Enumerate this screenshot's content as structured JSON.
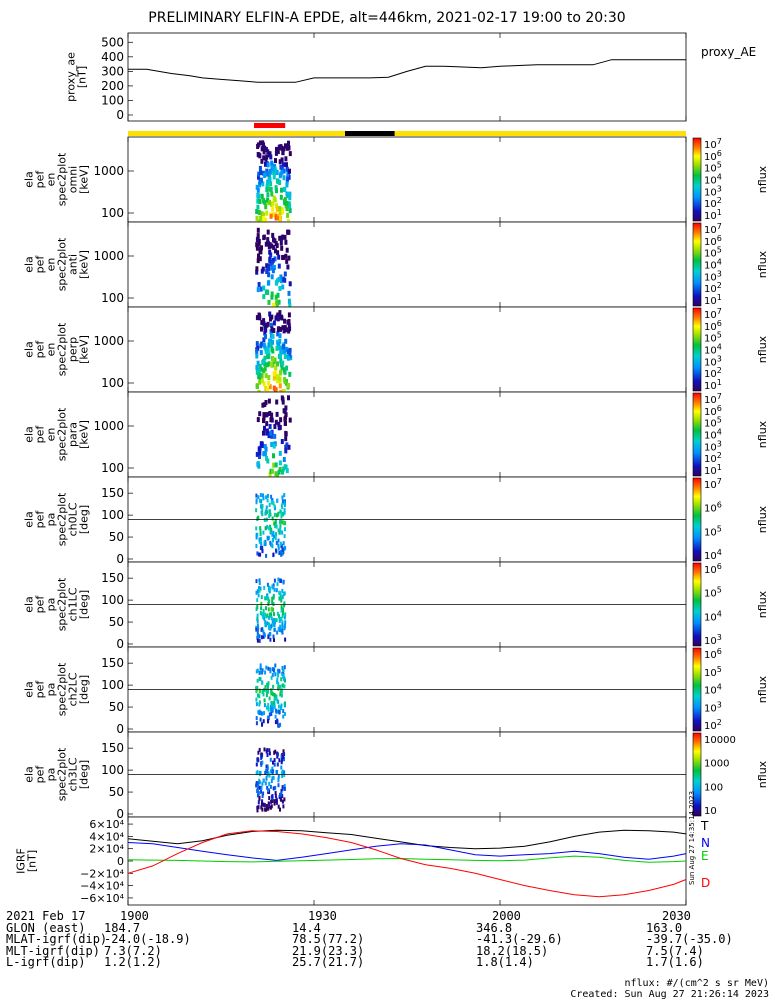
{
  "title": "PRELIMINARY ELFIN-A EPDE, alt=446km, 2021-02-17 19:00 to 20:30",
  "colors": {
    "bar_yellow": "#FFE000",
    "bar_black": "#000000",
    "bar_red": "#FF0000",
    "igrf_T": "#000000",
    "igrf_N": "#0000FF",
    "igrf_E": "#00CC00",
    "igrf_D": "#FF0000"
  },
  "chart_data": [
    {
      "type": "line",
      "id": "proxy_ae",
      "ylabel": "proxy_ae\n[nT]",
      "legend": "proxy_AE",
      "ylim": [
        0,
        550
      ],
      "yticks": [
        "500",
        "400",
        "300",
        "200",
        "100",
        "0"
      ],
      "ytick_values": [
        500,
        400,
        300,
        200,
        100,
        0
      ],
      "x": [
        0,
        3,
        5,
        7,
        10,
        12,
        15,
        18,
        21,
        24,
        27,
        30,
        33,
        36,
        39,
        42,
        45,
        48,
        51,
        54,
        57,
        60,
        63,
        66,
        69,
        72,
        75,
        78,
        81,
        84,
        87,
        90
      ],
      "values": [
        315,
        315,
        300,
        285,
        270,
        255,
        245,
        235,
        225,
        225,
        225,
        255,
        255,
        255,
        255,
        260,
        300,
        335,
        335,
        330,
        325,
        335,
        340,
        345,
        345,
        345,
        345,
        380,
        380,
        380,
        380,
        380
      ]
    },
    {
      "type": "heatmap",
      "id": "en_omni",
      "ylabel": "ela\npef\nen\nspec2plot\nomni\n[keV]",
      "yticks": [
        "1000",
        "100"
      ],
      "colorbar_label": "nflux",
      "colorbar_ticks": [
        "10^7",
        "10^6",
        "10^5",
        "10^4",
        "10^3",
        "10^2",
        "10^1"
      ]
    },
    {
      "type": "heatmap",
      "id": "en_anti",
      "ylabel": "ela\npef\nen\nspec2plot\nanti\n[keV]",
      "yticks": [
        "1000",
        "100"
      ],
      "colorbar_label": "nflux",
      "colorbar_ticks": [
        "10^7",
        "10^6",
        "10^5",
        "10^4",
        "10^3",
        "10^2",
        "10^1"
      ]
    },
    {
      "type": "heatmap",
      "id": "en_perp",
      "ylabel": "ela\npef\nen\nspec2plot\nperp\n[keV]",
      "yticks": [
        "1000",
        "100"
      ],
      "colorbar_label": "nflux",
      "colorbar_ticks": [
        "10^7",
        "10^6",
        "10^5",
        "10^4",
        "10^3",
        "10^2",
        "10^1"
      ]
    },
    {
      "type": "heatmap",
      "id": "en_para",
      "ylabel": "ela\npef\nen\nspec2plot\npara\n[keV]",
      "yticks": [
        "1000",
        "100"
      ],
      "colorbar_label": "nflux",
      "colorbar_ticks": [
        "10^7",
        "10^6",
        "10^5",
        "10^4",
        "10^3",
        "10^2",
        "10^1"
      ]
    },
    {
      "type": "heatmap",
      "id": "pa_ch0",
      "ylabel": "ela\npef\npa\nspec2plot\nch0LC\n[deg]",
      "yticks": [
        "150",
        "100",
        "50",
        "0"
      ],
      "colorbar_label": "nflux",
      "colorbar_ticks": [
        "10^7",
        "10^6",
        "10^5",
        "10^4"
      ]
    },
    {
      "type": "heatmap",
      "id": "pa_ch1",
      "ylabel": "ela\npef\npa\nspec2plot\nch1LC\n[deg]",
      "yticks": [
        "150",
        "100",
        "50",
        "0"
      ],
      "colorbar_label": "nflux",
      "colorbar_ticks": [
        "10^6",
        "10^5",
        "10^4",
        "10^3"
      ]
    },
    {
      "type": "heatmap",
      "id": "pa_ch2",
      "ylabel": "ela\npef\npa\nspec2plot\nch2LC\n[deg]",
      "yticks": [
        "150",
        "100",
        "50",
        "0"
      ],
      "colorbar_label": "nflux",
      "colorbar_ticks": [
        "10^6",
        "10^5",
        "10^4",
        "10^3",
        "10^2"
      ]
    },
    {
      "type": "heatmap",
      "id": "pa_ch3",
      "ylabel": "ela\npef\npa\nspec2plot\nch3LC\n[deg]",
      "yticks": [
        "150",
        "100",
        "50",
        "0"
      ],
      "colorbar_label": "nflux",
      "colorbar_ticks": [
        "10000",
        "1000",
        "100",
        "10"
      ]
    },
    {
      "type": "line",
      "id": "igrf",
      "ylabel": "IGRF\n[nT]",
      "ylim": [
        -65000,
        65000
      ],
      "yticks": [
        "6×10⁴",
        "4×10⁴",
        "2×10⁴",
        "0",
        "−2×10⁴",
        "−4×10⁴",
        "−6×10⁴"
      ],
      "ytick_values": [
        60000,
        40000,
        20000,
        0,
        -20000,
        -40000,
        -60000
      ],
      "x": [
        0,
        4,
        8,
        12,
        16,
        20,
        24,
        28,
        32,
        36,
        40,
        44,
        48,
        52,
        56,
        60,
        64,
        68,
        72,
        76,
        80,
        84,
        88,
        90
      ],
      "series": [
        {
          "name": "T",
          "color": "#000000",
          "values": [
            36000,
            32000,
            28000,
            33000,
            42000,
            48000,
            50000,
            49000,
            46000,
            43000,
            37000,
            31000,
            25000,
            22000,
            20000,
            21000,
            24000,
            31000,
            40000,
            47000,
            50000,
            49000,
            47000,
            44000
          ]
        },
        {
          "name": "N",
          "color": "#0000FF",
          "values": [
            30000,
            28000,
            22000,
            16000,
            10000,
            5000,
            1000,
            6000,
            12000,
            18000,
            24000,
            28000,
            26000,
            18000,
            10000,
            8000,
            10000,
            12000,
            16000,
            12000,
            6000,
            3000,
            8000,
            12000
          ]
        },
        {
          "name": "E",
          "color": "#00CC00",
          "values": [
            2000,
            1500,
            1000,
            0,
            -1000,
            -1500,
            -500,
            500,
            1500,
            2500,
            3500,
            4000,
            3000,
            2000,
            1000,
            500,
            1500,
            5000,
            8000,
            6000,
            1000,
            -2000,
            -1000,
            0
          ]
        },
        {
          "name": "D",
          "color": "#FF0000",
          "values": [
            -20000,
            -8000,
            12000,
            30000,
            44000,
            49000,
            48000,
            44000,
            38000,
            30000,
            18000,
            4000,
            -6000,
            -12000,
            -20000,
            -30000,
            -40000,
            -48000,
            -55000,
            -58000,
            -55000,
            -48000,
            -38000,
            -30000
          ]
        }
      ]
    }
  ],
  "bars": {
    "yellow": [
      [
        0,
        90
      ]
    ],
    "black": [
      [
        35,
        43
      ]
    ],
    "red": [
      [
        20,
        26
      ]
    ]
  },
  "xaxis": {
    "ticks": [
      "1900",
      "1930",
      "2000",
      "2030"
    ],
    "tick_minutes": [
      0,
      30,
      60,
      90
    ]
  },
  "footer": {
    "labels": [
      "2021 Feb 17",
      "GLON (east)",
      "MLAT-igrf(dip)",
      "MLT-igrf(dip)",
      "L-igrf(dip)"
    ],
    "rows": [
      [
        "1900",
        "1930",
        "2000",
        "2030"
      ],
      [
        "184.7",
        "14.4",
        "346.8",
        "163.0"
      ],
      [
        "-24.0(-18.9)",
        "78.5(77.2)",
        "-41.3(-29.6)",
        "-39.7(-35.0)"
      ],
      [
        "7.3(7.2)",
        "21.9(23.3)",
        "18.2(18.5)",
        "7.5(7.4)"
      ],
      [
        "1.2(1.2)",
        "25.7(21.7)",
        "1.8(1.4)",
        "1.7(1.6)"
      ]
    ],
    "nflux_units": "nflux: #/(cm^2 s sr MeV)",
    "created": "Created: Sun Aug 27 21:26:14 2023",
    "side_stamp": "Sun Aug 27 14:35:14 2023"
  }
}
